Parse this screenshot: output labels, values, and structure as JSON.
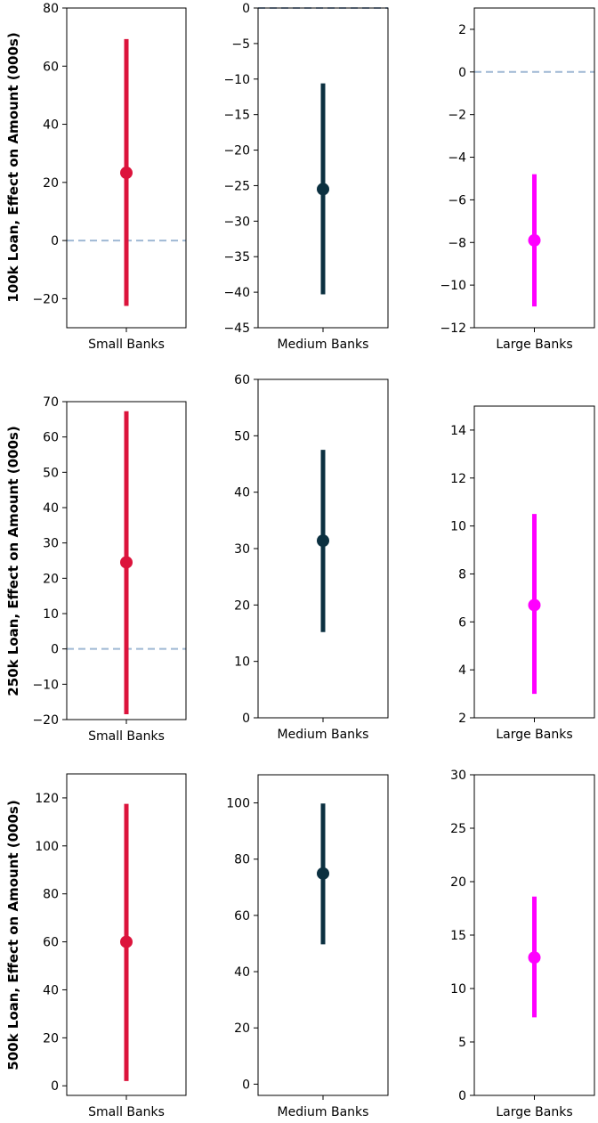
{
  "chart_data": [
    {
      "type": "scatter",
      "row_label": "100k Loan, Effect on Amount (000s)",
      "category": "Small Banks",
      "color": "#dc143c",
      "estimate": 23.3,
      "ci": [
        -22.5,
        69.3
      ],
      "ylim": [
        -30,
        80
      ],
      "yticks": [
        -20,
        0,
        20,
        40,
        60,
        80
      ],
      "ytick_labels": [
        "−20",
        "0",
        "20",
        "40",
        "60",
        "80"
      ],
      "zero_line": true
    },
    {
      "type": "scatter",
      "category": "Medium Banks",
      "color": "#0b3040",
      "estimate": -25.5,
      "ci": [
        -40.3,
        -10.6
      ],
      "ylim": [
        -45,
        0
      ],
      "yticks": [
        -45,
        -40,
        -35,
        -30,
        -25,
        -20,
        -15,
        -10,
        -5,
        0
      ],
      "ytick_labels": [
        "−45",
        "−40",
        "−35",
        "−30",
        "−25",
        "−20",
        "−15",
        "−10",
        "−5",
        "0"
      ],
      "zero_line": true
    },
    {
      "type": "scatter",
      "category": "Large Banks",
      "color": "#ff00ff",
      "estimate": -7.9,
      "ci": [
        -11.0,
        -4.8
      ],
      "ylim": [
        -12,
        3
      ],
      "yticks": [
        -12,
        -10,
        -8,
        -6,
        -4,
        -2,
        0,
        2
      ],
      "ytick_labels": [
        "−12",
        "−10",
        "−8",
        "−6",
        "−4",
        "−2",
        "0",
        "2"
      ],
      "zero_line": true
    },
    {
      "type": "scatter",
      "row_label": "250k Loan, Effect on Amount (000s)",
      "category": "Small Banks",
      "color": "#dc143c",
      "estimate": 24.5,
      "ci": [
        -18.5,
        67.3
      ],
      "ylim": [
        -20,
        70
      ],
      "yticks": [
        -20,
        -10,
        0,
        10,
        20,
        30,
        40,
        50,
        60,
        70
      ],
      "ytick_labels": [
        "−20",
        "−10",
        "0",
        "10",
        "20",
        "30",
        "40",
        "50",
        "60",
        "70"
      ],
      "zero_line": true
    },
    {
      "type": "scatter",
      "category": "Medium Banks",
      "color": "#0b3040",
      "estimate": 31.4,
      "ci": [
        15.2,
        47.5
      ],
      "ylim": [
        0,
        60
      ],
      "yticks": [
        0,
        10,
        20,
        30,
        40,
        50,
        60
      ],
      "ytick_labels": [
        "0",
        "10",
        "20",
        "30",
        "40",
        "50",
        "60"
      ],
      "zero_line": false
    },
    {
      "type": "scatter",
      "category": "Large Banks",
      "color": "#ff00ff",
      "estimate": 6.7,
      "ci": [
        3.0,
        10.5
      ],
      "ylim": [
        2,
        15
      ],
      "yticks": [
        2,
        4,
        6,
        8,
        10,
        12,
        14
      ],
      "ytick_labels": [
        "2",
        "4",
        "6",
        "8",
        "10",
        "12",
        "14"
      ],
      "zero_line": false
    },
    {
      "type": "scatter",
      "row_label": "500k Loan, Effect on Amount (000s)",
      "category": "Small Banks",
      "color": "#dc143c",
      "estimate": 60.0,
      "ci": [
        2.0,
        117.5
      ],
      "ylim": [
        -4,
        130
      ],
      "yticks": [
        0,
        20,
        40,
        60,
        80,
        100,
        120
      ],
      "ytick_labels": [
        "0",
        "20",
        "40",
        "60",
        "80",
        "100",
        "120"
      ],
      "zero_line": false
    },
    {
      "type": "scatter",
      "category": "Medium Banks",
      "color": "#0b3040",
      "estimate": 74.9,
      "ci": [
        49.7,
        99.8
      ],
      "ylim": [
        -4,
        110
      ],
      "yticks": [
        0,
        20,
        40,
        60,
        80,
        100
      ],
      "ytick_labels": [
        "0",
        "20",
        "40",
        "60",
        "80",
        "100"
      ],
      "zero_line": false
    },
    {
      "type": "scatter",
      "category": "Large Banks",
      "color": "#ff00ff",
      "estimate": 12.9,
      "ci": [
        7.3,
        18.6
      ],
      "ylim": [
        0,
        30
      ],
      "yticks": [
        0,
        5,
        10,
        15,
        20,
        25,
        30
      ],
      "ytick_labels": [
        "0",
        "5",
        "10",
        "15",
        "20",
        "25",
        "30"
      ],
      "zero_line": false
    }
  ]
}
